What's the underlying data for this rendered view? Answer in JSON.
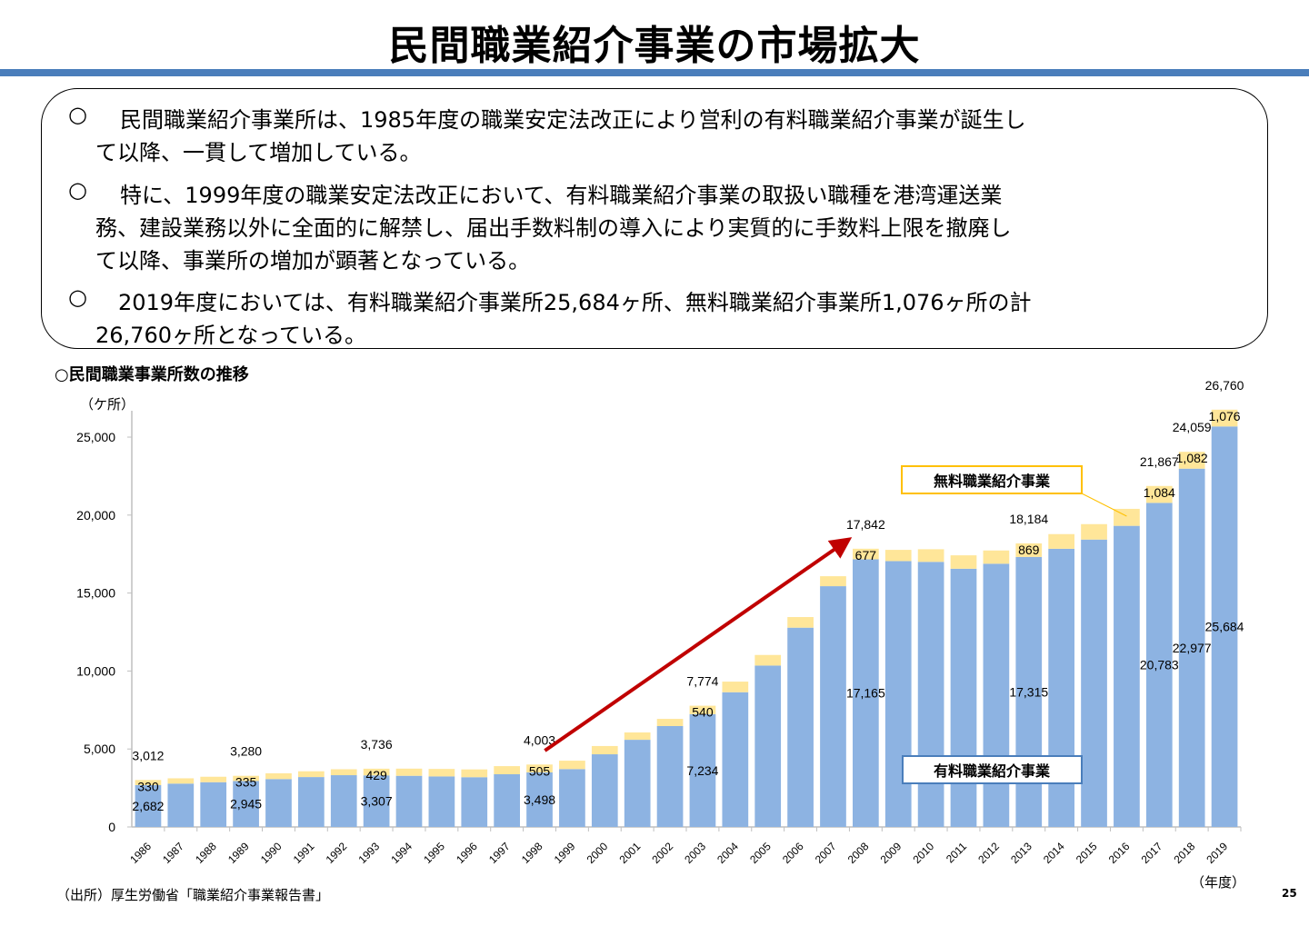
{
  "slide": {
    "title": "民間職業紹介事業の市場拡大",
    "bullet_mark": "○",
    "bullets": [
      {
        "lines": [
          "民間職業紹介事業所は、1985年度の職業安定法改正により営利の有料職業紹介事業が誕生し",
          "て以降、一貫して増加している。"
        ]
      },
      {
        "lines": [
          "特に、1999年度の職業安定法改正において、有料職業紹介事業の取扱い職種を港湾運送業",
          "務、建設業務以外に全面的に解禁し、届出手数料制の導入により実質的に手数料上限を撤廃し",
          "て以降、事業所の増加が顕著となっている。"
        ]
      },
      {
        "lines": [
          "2019年度においては、有料職業紹介事業所25,684ヶ所、無料職業紹介事業所1,076ヶ所の計",
          "26,760ヶ所となっている。"
        ]
      }
    ],
    "chart_subtitle": "○民間職業事業所数の推移",
    "source": "（出所）厚生労働省「職業紹介事業報告書」",
    "page_number": "25"
  },
  "chart_data": {
    "type": "bar",
    "stacked": true,
    "title": "民間職業事業所数の推移",
    "ylabel": "（ケ所）",
    "xlabel": "（年度）",
    "ylim": [
      0,
      27000
    ],
    "yticks": [
      0,
      5000,
      10000,
      15000,
      20000,
      25000
    ],
    "ytick_labels": [
      "0",
      "5,000",
      "10,000",
      "15,000",
      "20,000",
      "25,000"
    ],
    "grid": false,
    "categories": [
      "1986",
      "1987",
      "1988",
      "1989",
      "1990",
      "1991",
      "1992",
      "1993",
      "1994",
      "1995",
      "1996",
      "1997",
      "1998",
      "1999",
      "2000",
      "2001",
      "2002",
      "2003",
      "2004",
      "2005",
      "2006",
      "2007",
      "2008",
      "2009",
      "2010",
      "2011",
      "2012",
      "2013",
      "2014",
      "2015",
      "2016",
      "2017",
      "2018",
      "2019"
    ],
    "series": [
      {
        "name": "有料職業紹介事業",
        "color": "#8db3e2",
        "values": [
          2682,
          2780,
          2870,
          2945,
          3070,
          3200,
          3320,
          3307,
          3280,
          3240,
          3190,
          3380,
          3498,
          3710,
          4660,
          5590,
          6470,
          7234,
          8640,
          10350,
          12780,
          15440,
          17165,
          17050,
          17000,
          16560,
          16880,
          17315,
          17840,
          18430,
          19310,
          20783,
          22977,
          25684
        ]
      },
      {
        "name": "無料職業紹介事業",
        "color": "#ffe699",
        "values": [
          330,
          340,
          350,
          335,
          370,
          370,
          380,
          429,
          460,
          480,
          500,
          520,
          505,
          540,
          530,
          470,
          460,
          540,
          680,
          680,
          680,
          640,
          677,
          720,
          810,
          860,
          850,
          869,
          940,
          990,
          1090,
          1084,
          1082,
          1076
        ]
      }
    ],
    "data_labels": {
      "total": {
        "1986": "3,012",
        "1989": "3,280",
        "1993": "3,736",
        "1998": "4,003",
        "2003": "7,774",
        "2008": "17,842",
        "2013": "18,184",
        "2017": "21,867",
        "2018": "24,059",
        "2019": "26,760"
      },
      "free": {
        "1986": "330",
        "1989": "335",
        "1993": "429",
        "1998": "505",
        "2003": "540",
        "2008": "677",
        "2013": "869",
        "2017": "1,084",
        "2018": "1,082",
        "2019": "1,076"
      },
      "paid": {
        "1986": "2,682",
        "1989": "2,945",
        "1993": "3,307",
        "1998": "3,498",
        "2003": "7,234",
        "2008": "17,165",
        "2013": "17,315",
        "2017": "20,783",
        "2018": "22,977",
        "2019": "25,684"
      }
    },
    "annotations": {
      "free_legend": "無料職業紹介事業",
      "paid_legend": "有料職業紹介事業",
      "free_legend_color": "#ffc000",
      "paid_legend_color": "#4a7ebb",
      "arrow_color": "#c00000",
      "arrow_from_year": "1999",
      "arrow_to_year": "2008"
    }
  }
}
